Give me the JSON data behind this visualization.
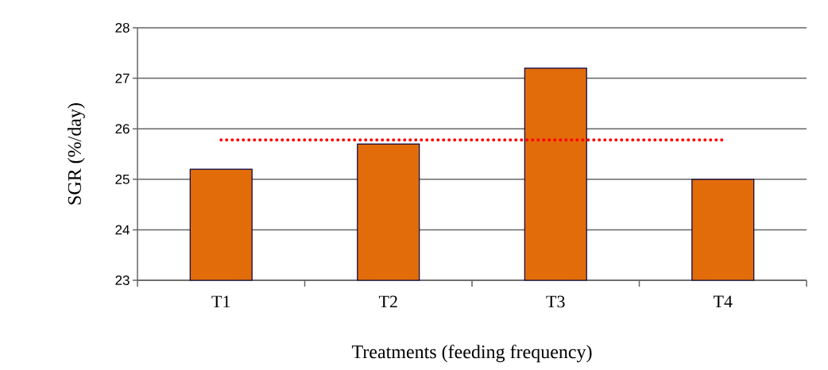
{
  "chart_data": {
    "type": "bar",
    "xlabel": "Treatments (feeding frequency)",
    "ylabel": "SGR (%/day)",
    "categories": [
      "T1",
      "T2",
      "T3",
      "T4"
    ],
    "ylim": [
      23,
      28
    ],
    "yticks": [
      23,
      24,
      25,
      26,
      27,
      28
    ],
    "grid": "y",
    "series": [
      {
        "color": "#e36c0a",
        "values": [
          25.2,
          25.7,
          27.2,
          25.0
        ]
      },
      {
        "type": "line",
        "color": "#ff0000",
        "line_style": "dotted",
        "marker": "none",
        "values": [
          25.78,
          25.78,
          25.78,
          25.78
        ]
      }
    ]
  }
}
